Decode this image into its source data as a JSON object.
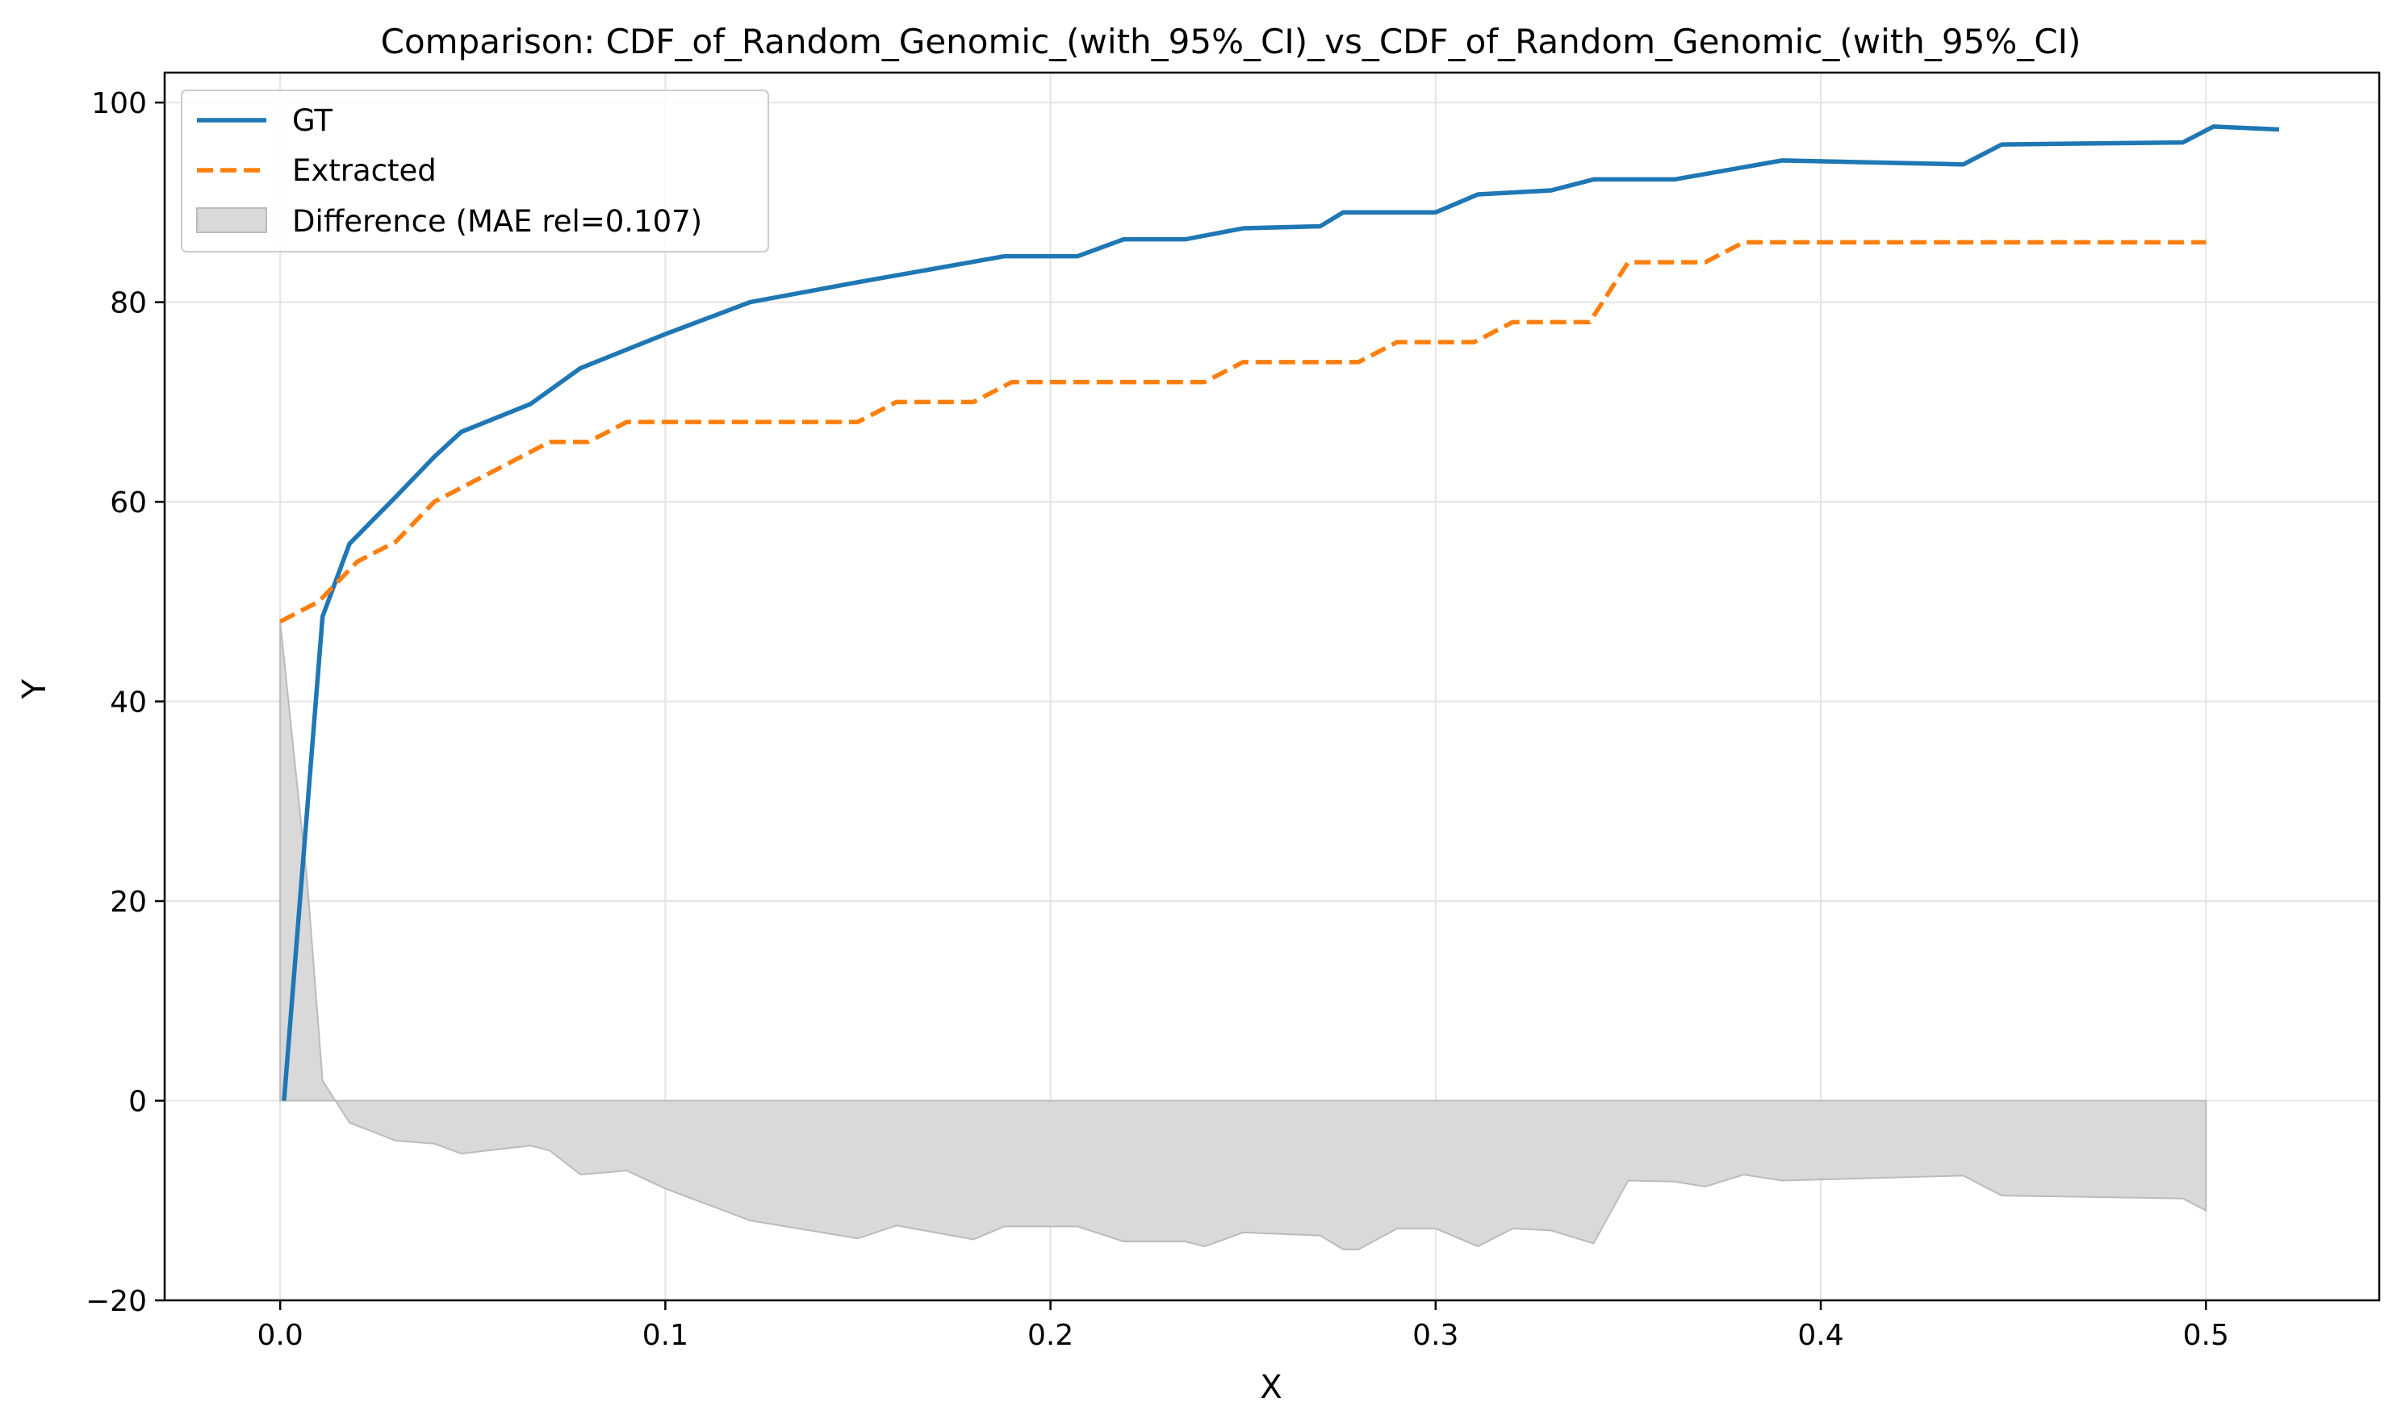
{
  "chart_data": {
    "type": "line",
    "title": "Comparison: CDF_of_Random_Genomic_(with_95%_CI)_vs_CDF_of_Random_Genomic_(with_95%_CI)",
    "xlabel": "X",
    "ylabel": "Y",
    "xlim": [
      -0.03,
      0.545
    ],
    "ylim": [
      -20,
      103
    ],
    "xticks": [
      0.0,
      0.1,
      0.2,
      0.3,
      0.4,
      0.5
    ],
    "xtick_labels": [
      "0.0",
      "0.1",
      "0.2",
      "0.3",
      "0.4",
      "0.5"
    ],
    "yticks": [
      -20,
      0,
      20,
      40,
      60,
      80,
      100
    ],
    "ytick_labels": [
      "−20",
      "0",
      "20",
      "40",
      "60",
      "80",
      "100"
    ],
    "grid": true,
    "legend_position": "top-left",
    "series": [
      {
        "name": "GT",
        "color": "#1f77b4",
        "style": "solid",
        "x": [
          0.001,
          0.011,
          0.018,
          0.03,
          0.04,
          0.047,
          0.065,
          0.078,
          0.1,
          0.122,
          0.15,
          0.188,
          0.207,
          0.219,
          0.235,
          0.25,
          0.27,
          0.276,
          0.3,
          0.311,
          0.33,
          0.341,
          0.362,
          0.39,
          0.437,
          0.447,
          0.494,
          0.502,
          0.519
        ],
        "y": [
          0.0,
          48.5,
          55.8,
          60.5,
          64.5,
          67.0,
          69.8,
          73.4,
          76.8,
          80.0,
          82.0,
          84.6,
          84.6,
          86.3,
          86.3,
          87.4,
          87.6,
          89.0,
          89.0,
          90.8,
          91.2,
          92.3,
          92.3,
          94.2,
          93.8,
          95.8,
          96.0,
          97.6,
          97.3
        ]
      },
      {
        "name": "Extracted",
        "color": "#ff7f0e",
        "style": "dashed",
        "x": [
          0.0,
          0.01,
          0.02,
          0.03,
          0.04,
          0.05,
          0.06,
          0.07,
          0.08,
          0.09,
          0.1,
          0.15,
          0.16,
          0.18,
          0.19,
          0.24,
          0.25,
          0.28,
          0.29,
          0.31,
          0.32,
          0.34,
          0.35,
          0.37,
          0.38,
          0.5
        ],
        "y": [
          48.0,
          50.0,
          54.0,
          56.0,
          60.0,
          62.0,
          64.0,
          66.0,
          66.0,
          68.0,
          68.0,
          68.0,
          70.0,
          70.0,
          72.0,
          72.0,
          74.0,
          74.0,
          76.0,
          76.0,
          78.0,
          78.0,
          84.0,
          84.0,
          86.0,
          86.0
        ]
      },
      {
        "name": "Difference (MAE rel=0.107)",
        "color": "#bbbbbb",
        "style": "fill",
        "x": [
          0.0,
          0.007,
          0.011,
          0.018,
          0.03,
          0.04,
          0.047,
          0.065,
          0.07,
          0.078,
          0.09,
          0.1,
          0.122,
          0.15,
          0.16,
          0.18,
          0.188,
          0.207,
          0.219,
          0.235,
          0.24,
          0.25,
          0.27,
          0.276,
          0.28,
          0.29,
          0.3,
          0.311,
          0.32,
          0.33,
          0.341,
          0.35,
          0.362,
          0.37,
          0.38,
          0.39,
          0.437,
          0.447,
          0.494,
          0.5
        ],
        "y": [
          48.0,
          22.0,
          2.0,
          -2.2,
          -4.0,
          -4.3,
          -5.3,
          -4.5,
          -5.0,
          -7.4,
          -7.0,
          -8.8,
          -12.0,
          -13.8,
          -12.5,
          -13.9,
          -12.6,
          -12.6,
          -14.1,
          -14.1,
          -14.6,
          -13.2,
          -13.5,
          -14.9,
          -14.9,
          -12.8,
          -12.8,
          -14.6,
          -12.8,
          -13.0,
          -14.3,
          -8.0,
          -8.1,
          -8.6,
          -7.4,
          -8.0,
          -7.5,
          -9.5,
          -9.8,
          -11.0
        ]
      }
    ],
    "legend": {
      "items": [
        "GT",
        "Extracted",
        "Difference (MAE rel=0.107)"
      ]
    }
  }
}
